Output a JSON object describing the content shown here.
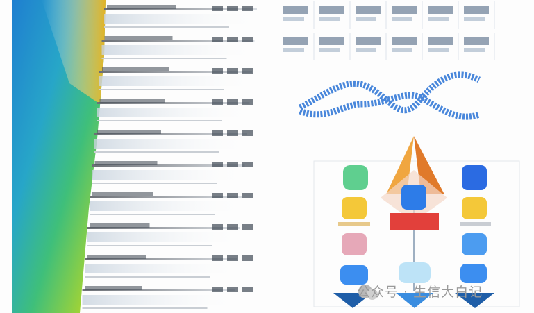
{
  "watermark": {
    "text": "公众号 · 生信大白记"
  }
}
